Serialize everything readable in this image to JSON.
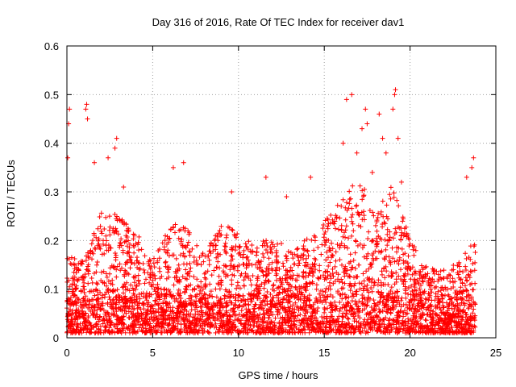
{
  "chart_data": {
    "type": "scatter",
    "title": "Day 316 of 2016, Rate Of TEC Index for receiver dav1",
    "xlabel": "GPS time / hours",
    "ylabel": "ROTI / TECUs",
    "xlim": [
      0,
      25
    ],
    "ylim": [
      0,
      0.6
    ],
    "xticks": [
      "0",
      "5",
      "10",
      "15",
      "20",
      "25"
    ],
    "yticks": [
      "0",
      "0.1",
      "0.2",
      "0.3",
      "0.4",
      "0.5",
      "0.6"
    ],
    "grid": true,
    "marker": "+",
    "color": "#ff0000",
    "series": [
      {
        "name": "",
        "x_range": [
          0,
          23.8
        ],
        "typical_envelope": [
          [
            0.0,
            0.17
          ],
          [
            1.0,
            0.16
          ],
          [
            2.0,
            0.27
          ],
          [
            3.0,
            0.25
          ],
          [
            4.0,
            0.22
          ],
          [
            5.0,
            0.16
          ],
          [
            6.0,
            0.24
          ],
          [
            7.0,
            0.23
          ],
          [
            8.0,
            0.17
          ],
          [
            9.0,
            0.24
          ],
          [
            10.0,
            0.22
          ],
          [
            11.0,
            0.19
          ],
          [
            12.0,
            0.21
          ],
          [
            13.0,
            0.18
          ],
          [
            14.0,
            0.21
          ],
          [
            15.0,
            0.24
          ],
          [
            16.0,
            0.29
          ],
          [
            17.0,
            0.33
          ],
          [
            18.0,
            0.26
          ],
          [
            19.0,
            0.32
          ],
          [
            20.0,
            0.2
          ],
          [
            21.0,
            0.15
          ],
          [
            22.0,
            0.14
          ],
          [
            23.0,
            0.16
          ],
          [
            23.8,
            0.21
          ]
        ],
        "outliers": [
          [
            0.05,
            0.37
          ],
          [
            0.1,
            0.44
          ],
          [
            0.15,
            0.47
          ],
          [
            1.1,
            0.47
          ],
          [
            1.15,
            0.48
          ],
          [
            1.2,
            0.45
          ],
          [
            1.6,
            0.36
          ],
          [
            2.4,
            0.37
          ],
          [
            2.8,
            0.39
          ],
          [
            2.9,
            0.41
          ],
          [
            3.3,
            0.31
          ],
          [
            6.2,
            0.35
          ],
          [
            6.8,
            0.36
          ],
          [
            9.6,
            0.3
          ],
          [
            11.6,
            0.33
          ],
          [
            12.8,
            0.29
          ],
          [
            14.2,
            0.33
          ],
          [
            16.1,
            0.4
          ],
          [
            16.3,
            0.49
          ],
          [
            16.6,
            0.5
          ],
          [
            16.9,
            0.38
          ],
          [
            17.2,
            0.43
          ],
          [
            17.4,
            0.47
          ],
          [
            17.5,
            0.44
          ],
          [
            17.8,
            0.34
          ],
          [
            18.2,
            0.46
          ],
          [
            18.4,
            0.41
          ],
          [
            18.6,
            0.38
          ],
          [
            19.0,
            0.47
          ],
          [
            19.1,
            0.5
          ],
          [
            19.15,
            0.51
          ],
          [
            19.3,
            0.41
          ],
          [
            19.5,
            0.32
          ],
          [
            23.3,
            0.33
          ],
          [
            23.6,
            0.35
          ],
          [
            23.7,
            0.37
          ]
        ]
      }
    ]
  }
}
